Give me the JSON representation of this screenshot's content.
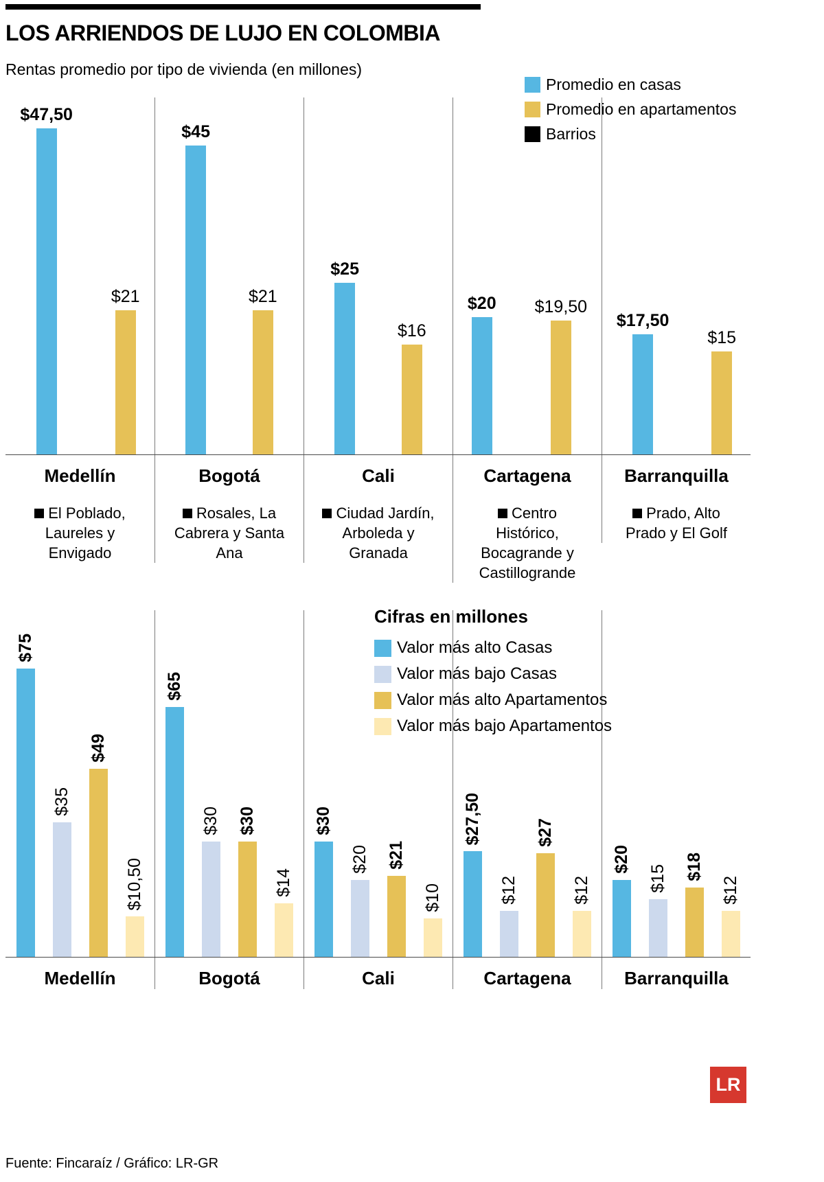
{
  "header": {
    "title": "LOS ARRIENDOS DE LUJO EN COLOMBIA",
    "subtitle": "Rentas promedio por tipo de vivienda (en millones)"
  },
  "colors": {
    "casas": "#56b7e2",
    "apartamentos": "#e6c157",
    "casas_bajo": "#ccd9ed",
    "apartamentos_bajo": "#fde9b2",
    "barrios": "#000000",
    "logo_red": "#d6382e"
  },
  "chart_data": [
    {
      "type": "bar",
      "title": "Rentas promedio por tipo de vivienda (en millones)",
      "categories": [
        "Medellín",
        "Bogotá",
        "Cali",
        "Cartagena",
        "Barranquilla"
      ],
      "series": [
        {
          "name": "Promedio en casas",
          "color_key": "casas",
          "bold": true,
          "values": [
            47.5,
            45,
            25,
            20,
            17.5
          ],
          "labels": [
            "$47,50",
            "$45",
            "$25",
            "$20",
            "$17,50"
          ]
        },
        {
          "name": "Promedio en apartamentos",
          "color_key": "apartamentos",
          "bold": false,
          "values": [
            21,
            21,
            16,
            19.5,
            15
          ],
          "labels": [
            "$21",
            "$21",
            "$16",
            "$19,50",
            "$15"
          ]
        }
      ],
      "legend": [
        {
          "label": "Promedio en casas",
          "color_key": "casas"
        },
        {
          "label": "Promedio en apartamentos",
          "color_key": "apartamentos"
        },
        {
          "label": "Barrios",
          "color_key": "barrios"
        }
      ],
      "legend_position": "top-right",
      "barrios": [
        "El Poblado, Laureles y Envigado",
        "Rosales, La Cabrera y Santa Ana",
        "Ciudad Jardín, Arboleda y Granada",
        "Centro Histórico, Bocagrande y Castillogrande",
        "Prado, Alto Prado y El Golf"
      ],
      "ylim": [
        0,
        52
      ],
      "grid": false
    },
    {
      "type": "bar",
      "title": "Cifras en millones",
      "categories": [
        "Medellín",
        "Bogotá",
        "Cali",
        "Cartagena",
        "Barranquilla"
      ],
      "series": [
        {
          "name": "Valor más alto Casas",
          "color_key": "casas",
          "bold": true,
          "values": [
            75,
            65,
            30,
            27.5,
            20
          ],
          "labels": [
            "$75",
            "$65",
            "$30",
            "$27,50",
            "$20"
          ]
        },
        {
          "name": "Valor más bajo Casas",
          "color_key": "casas_bajo",
          "bold": false,
          "values": [
            35,
            30,
            20,
            12,
            15
          ],
          "labels": [
            "$35",
            "$30",
            "$20",
            "$12",
            "$15"
          ]
        },
        {
          "name": "Valor más alto Apartamentos",
          "color_key": "apartamentos",
          "bold": true,
          "values": [
            49,
            30,
            21,
            27,
            18
          ],
          "labels": [
            "$49",
            "$30",
            "$21",
            "$27",
            "$18"
          ]
        },
        {
          "name": "Valor más bajo Apartamentos",
          "color_key": "apartamentos_bajo",
          "bold": false,
          "values": [
            10.5,
            14,
            10,
            12,
            12
          ],
          "labels": [
            "$10,50",
            "$14",
            "$10",
            "$12",
            "$12"
          ]
        }
      ],
      "legend": [
        {
          "label": "Valor más alto Casas",
          "color_key": "casas"
        },
        {
          "label": "Valor más bajo Casas",
          "color_key": "casas_bajo"
        },
        {
          "label": "Valor más alto Apartamentos",
          "color_key": "apartamentos"
        },
        {
          "label": "Valor más bajo Apartamentos",
          "color_key": "apartamentos_bajo"
        }
      ],
      "legend_position": "inside-top-center",
      "ylim": [
        0,
        80
      ],
      "grid": false
    }
  ],
  "footer": {
    "source": "Fuente: Fincaraíz / Gráfico: LR-GR",
    "logo": "LR"
  }
}
